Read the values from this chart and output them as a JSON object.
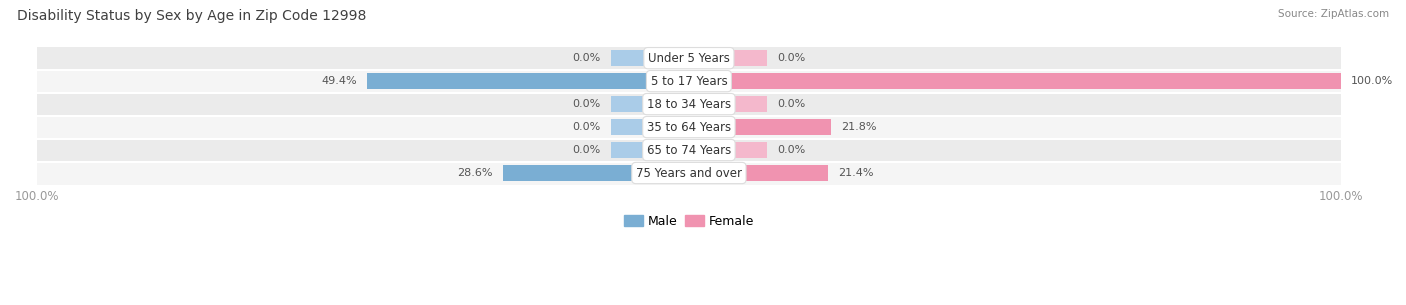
{
  "title": "Disability Status by Sex by Age in Zip Code 12998",
  "source": "Source: ZipAtlas.com",
  "categories": [
    "Under 5 Years",
    "5 to 17 Years",
    "18 to 34 Years",
    "35 to 64 Years",
    "65 to 74 Years",
    "75 Years and over"
  ],
  "male_values": [
    0.0,
    49.4,
    0.0,
    0.0,
    0.0,
    28.6
  ],
  "female_values": [
    0.0,
    100.0,
    0.0,
    21.8,
    0.0,
    21.4
  ],
  "male_color": "#7aaed3",
  "female_color": "#f093b0",
  "male_stub_color": "#aacce8",
  "female_stub_color": "#f4b8cc",
  "row_bg_even": "#ebebeb",
  "row_bg_odd": "#f5f5f5",
  "label_color": "#555555",
  "title_color": "#404040",
  "source_color": "#888888",
  "axis_label_color": "#999999",
  "max_value": 100.0,
  "stub_value": 12.0,
  "figsize": [
    14.06,
    3.05
  ],
  "dpi": 100
}
